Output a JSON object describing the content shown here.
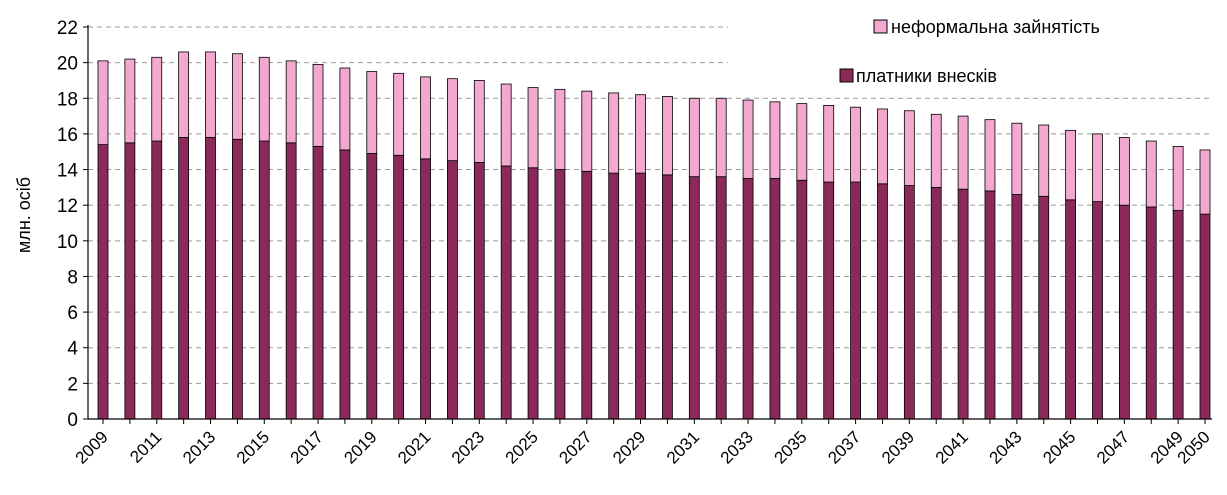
{
  "chart_data": {
    "type": "bar",
    "stacked": true,
    "title": "",
    "xlabel": "",
    "ylabel": "млн. осіб",
    "ylim": [
      0,
      22
    ],
    "yticks": [
      0,
      2,
      4,
      6,
      8,
      10,
      12,
      14,
      16,
      18,
      20,
      22
    ],
    "grid": "horizontal dashed",
    "legend_position": "top-right",
    "x": [
      2009,
      2010,
      2011,
      2012,
      2013,
      2014,
      2015,
      2016,
      2017,
      2018,
      2019,
      2020,
      2021,
      2022,
      2023,
      2024,
      2025,
      2026,
      2027,
      2028,
      2029,
      2030,
      2031,
      2032,
      2033,
      2034,
      2035,
      2036,
      2037,
      2038,
      2039,
      2040,
      2041,
      2042,
      2043,
      2044,
      2045,
      2046,
      2047,
      2048,
      2049,
      2050
    ],
    "x_tick_labels": [
      "2009",
      "2011",
      "2013",
      "2015",
      "2017",
      "2019",
      "2021",
      "2023",
      "2025",
      "2027",
      "2029",
      "2031",
      "2033",
      "2035",
      "2037",
      "2039",
      "2041",
      "2043",
      "2045",
      "2047",
      "2049",
      "2050"
    ],
    "series": [
      {
        "name": "платники внесків",
        "color": "#8b2a5a",
        "values": [
          15.4,
          15.5,
          15.6,
          15.8,
          15.8,
          15.7,
          15.6,
          15.5,
          15.3,
          15.1,
          14.9,
          14.8,
          14.6,
          14.5,
          14.4,
          14.2,
          14.1,
          14.0,
          13.9,
          13.8,
          13.8,
          13.7,
          13.6,
          13.6,
          13.5,
          13.5,
          13.4,
          13.3,
          13.3,
          13.2,
          13.1,
          13.0,
          12.9,
          12.8,
          12.6,
          12.5,
          12.3,
          12.2,
          12.0,
          11.9,
          11.7,
          11.5
        ]
      },
      {
        "name": "неформальна зайнятість",
        "color": "#f3a9cf",
        "values": [
          4.7,
          4.7,
          4.7,
          4.8,
          4.8,
          4.8,
          4.7,
          4.6,
          4.6,
          4.6,
          4.6,
          4.6,
          4.6,
          4.6,
          4.6,
          4.6,
          4.5,
          4.5,
          4.5,
          4.5,
          4.4,
          4.4,
          4.4,
          4.4,
          4.4,
          4.3,
          4.3,
          4.3,
          4.2,
          4.2,
          4.2,
          4.1,
          4.1,
          4.0,
          4.0,
          4.0,
          3.9,
          3.8,
          3.8,
          3.7,
          3.6,
          3.6
        ]
      }
    ]
  }
}
